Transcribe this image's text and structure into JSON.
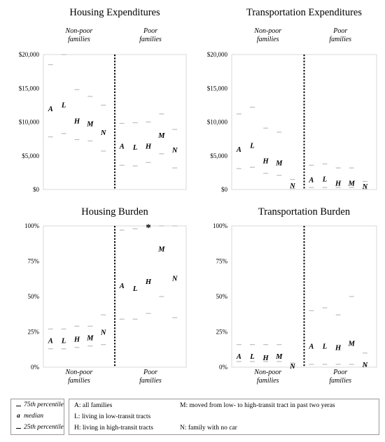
{
  "chart_data": [
    {
      "type": "scatter",
      "title": "Housing Expenditures",
      "groups": [
        "Non-poor\nfamilies",
        "Poor\nfamilies"
      ],
      "y_ticks": [
        "$0",
        "$5,000",
        "$10,000",
        "$15,000",
        "$20,000"
      ],
      "ylim": [
        0,
        20000
      ],
      "series": [
        {
          "label": "A",
          "group": 0,
          "median": 12000,
          "p75": 18500,
          "p25": 7800
        },
        {
          "label": "L",
          "group": 0,
          "median": 12600,
          "p75": 20000,
          "p25": 8300
        },
        {
          "label": "H",
          "group": 0,
          "median": 10200,
          "p75": 14800,
          "p25": 7400
        },
        {
          "label": "M",
          "group": 0,
          "median": 9800,
          "p75": 13800,
          "p25": 7200
        },
        {
          "label": "N",
          "group": 0,
          "median": 8500,
          "p75": 12500,
          "p25": 5700
        },
        {
          "label": "A",
          "group": 1,
          "median": 6500,
          "p75": 9800,
          "p25": 3600
        },
        {
          "label": "L",
          "group": 1,
          "median": 6300,
          "p75": 9900,
          "p25": 3500
        },
        {
          "label": "H",
          "group": 1,
          "median": 6500,
          "p75": 10000,
          "p25": 4000
        },
        {
          "label": "M",
          "group": 1,
          "median": 8100,
          "p75": 11200,
          "p25": 5300
        },
        {
          "label": "N",
          "group": 1,
          "median": 5900,
          "p75": 8900,
          "p25": 3200
        }
      ]
    },
    {
      "type": "scatter",
      "title": "Transportation Expenditures",
      "groups": [
        "Non-poor\nfamilies",
        "Poor\nfamilies"
      ],
      "y_ticks": [
        "$0",
        "$5,000",
        "$10,000",
        "$15,000",
        "$20,000"
      ],
      "ylim": [
        0,
        20000
      ],
      "series": [
        {
          "label": "A",
          "group": 0,
          "median": 6000,
          "p75": 11200,
          "p25": 3100
        },
        {
          "label": "L",
          "group": 0,
          "median": 6600,
          "p75": 12200,
          "p25": 3300
        },
        {
          "label": "H",
          "group": 0,
          "median": 4300,
          "p75": 9100,
          "p25": 2400
        },
        {
          "label": "M",
          "group": 0,
          "median": 4000,
          "p75": 8500,
          "p25": 2100
        },
        {
          "label": "N",
          "group": 0,
          "median": 600,
          "p75": 1500,
          "p25": 150
        },
        {
          "label": "A",
          "group": 1,
          "median": 1500,
          "p75": 3600,
          "p25": 300
        },
        {
          "label": "L",
          "group": 1,
          "median": 1600,
          "p75": 3800,
          "p25": 300
        },
        {
          "label": "H",
          "group": 1,
          "median": 1000,
          "p75": 3200,
          "p25": 300
        },
        {
          "label": "M",
          "group": 1,
          "median": 1000,
          "p75": 3200,
          "p25": 300
        },
        {
          "label": "N",
          "group": 1,
          "median": 500,
          "p75": 1200,
          "p25": 100
        }
      ]
    },
    {
      "type": "scatter",
      "title": "Housing Burden",
      "groups": [
        "Non-poor\nfamilies",
        "Poor\nfamilies"
      ],
      "y_ticks": [
        "0%",
        "25%",
        "50%",
        "75%",
        "100%"
      ],
      "ylim": [
        0,
        100
      ],
      "annotations": [
        "*"
      ],
      "series": [
        {
          "label": "A",
          "group": 0,
          "median": 19,
          "p75": 27,
          "p25": 13
        },
        {
          "label": "L",
          "group": 0,
          "median": 19,
          "p75": 27,
          "p25": 13
        },
        {
          "label": "H",
          "group": 0,
          "median": 20,
          "p75": 29,
          "p25": 14
        },
        {
          "label": "M",
          "group": 0,
          "median": 21,
          "p75": 29,
          "p25": 15
        },
        {
          "label": "N",
          "group": 0,
          "median": 25,
          "p75": 37,
          "p25": 16
        },
        {
          "label": "A",
          "group": 1,
          "median": 58,
          "p75": 97,
          "p25": 34
        },
        {
          "label": "L",
          "group": 1,
          "median": 56,
          "p75": 98,
          "p25": 34
        },
        {
          "label": "H",
          "group": 1,
          "median": 61,
          "p75": 100,
          "p25": 38
        },
        {
          "label": "M",
          "group": 1,
          "median": 84,
          "p75": 100,
          "p25": 50
        },
        {
          "label": "N",
          "group": 1,
          "median": 63,
          "p75": 100,
          "p25": 35
        }
      ]
    },
    {
      "type": "scatter",
      "title": "Transportation Burden",
      "groups": [
        "Non-poor\nfamilies",
        "Poor\nfamilies"
      ],
      "y_ticks": [
        "0%",
        "25%",
        "50%",
        "75%",
        "100%"
      ],
      "ylim": [
        0,
        100
      ],
      "series": [
        {
          "label": "A",
          "group": 0,
          "median": 8,
          "p75": 16,
          "p25": 4
        },
        {
          "label": "L",
          "group": 0,
          "median": 8,
          "p75": 16,
          "p25": 4
        },
        {
          "label": "H",
          "group": 0,
          "median": 7,
          "p75": 16,
          "p25": 4
        },
        {
          "label": "M",
          "group": 0,
          "median": 8,
          "p75": 16,
          "p25": 4
        },
        {
          "label": "N",
          "group": 0,
          "median": 1,
          "p75": 3,
          "p25": 0
        },
        {
          "label": "A",
          "group": 1,
          "median": 15,
          "p75": 40,
          "p25": 2
        },
        {
          "label": "L",
          "group": 1,
          "median": 15,
          "p75": 42,
          "p25": 2
        },
        {
          "label": "H",
          "group": 1,
          "median": 14,
          "p75": 37,
          "p25": 2
        },
        {
          "label": "M",
          "group": 1,
          "median": 17,
          "p75": 50,
          "p25": 2
        },
        {
          "label": "N",
          "group": 1,
          "median": 2,
          "p75": 10,
          "p25": 1
        }
      ]
    }
  ],
  "legend": {
    "stats": {
      "p75": "75th percentile",
      "median_symbol": "a",
      "median": "median",
      "p25": "25th percentile"
    },
    "codes": {
      "A": "A: all families",
      "L": "L: living in low-transit tracts",
      "H": "H: living in high-transit tracts",
      "M": "M: moved from low- to high-transit tract in past two yeras",
      "N": "N: family with no car"
    }
  }
}
